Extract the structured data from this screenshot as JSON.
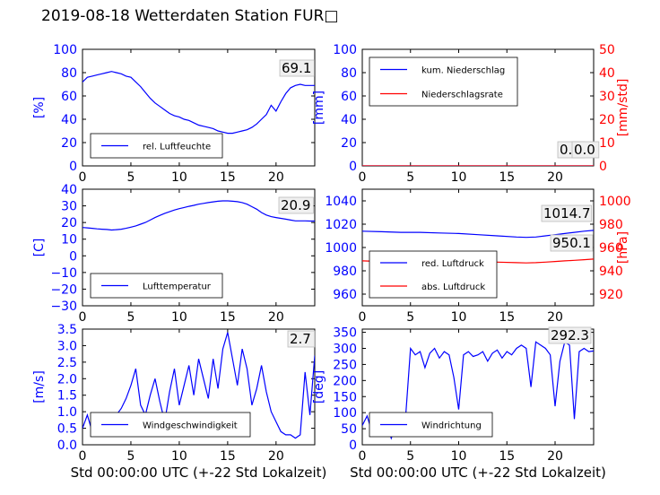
{
  "title": "2019-08-18 Wetterdaten Station FUR□",
  "colors": {
    "primary": "#0000ff",
    "secondary": "#ff0000",
    "faded": "#8080ff"
  },
  "chart_data": [
    {
      "id": "humidity",
      "type": "line",
      "xlim": [
        0,
        24
      ],
      "xticks": [
        "0",
        "5",
        "10",
        "15",
        "20"
      ],
      "ylabel": "[%]",
      "ylim": [
        0,
        100
      ],
      "yticks": [
        "0",
        "20",
        "40",
        "60",
        "80",
        "100"
      ],
      "latest_value": "69.1",
      "legend": {
        "placement": "lower-left",
        "entries": [
          "rel. Luftfeuchte"
        ]
      },
      "series": [
        {
          "name": "rel. Luftfeuchte",
          "color": "#0000ff",
          "x": [
            0,
            0.5,
            1,
            1.5,
            2,
            2.5,
            3,
            3.5,
            4,
            4.5,
            5,
            5.5,
            6,
            6.5,
            7,
            7.5,
            8,
            8.5,
            9,
            9.5,
            10,
            10.5,
            11,
            11.5,
            12,
            12.5,
            13,
            13.5,
            14,
            14.5,
            15,
            15.5,
            16,
            16.5,
            17,
            17.5,
            18,
            18.5,
            19,
            19.5,
            20,
            20.5,
            21,
            21.5,
            22,
            22.5,
            23,
            23.5,
            24
          ],
          "y": [
            72,
            76,
            77,
            78,
            79,
            80,
            81,
            80,
            79,
            77,
            76,
            72,
            68,
            63,
            58,
            54,
            51,
            48,
            45,
            43,
            42,
            40,
            39,
            37,
            35,
            34,
            33,
            32,
            30,
            29,
            28,
            28,
            29,
            30,
            31,
            33,
            36,
            40,
            44,
            52,
            47,
            55,
            62,
            67,
            69,
            70,
            69,
            69,
            69
          ]
        }
      ]
    },
    {
      "id": "precipitation",
      "type": "line",
      "xlim": [
        0,
        24
      ],
      "xticks": [
        "0",
        "5",
        "10",
        "15",
        "20"
      ],
      "ylabel": "[mm]",
      "ylim": [
        0,
        100
      ],
      "yticks": [
        "0",
        "20",
        "40",
        "60",
        "80",
        "100"
      ],
      "y2label": "[mm/std]",
      "y2lim": [
        0,
        50
      ],
      "y2ticks": [
        "0",
        "10",
        "20",
        "30",
        "40",
        "50"
      ],
      "latest_values": [
        "0.0",
        "0.0"
      ],
      "legend": {
        "placement": "top-left",
        "entries": [
          "kum. Niederschlag",
          "Niederschlagsrate"
        ]
      },
      "series": [
        {
          "name": "kum. Niederschlag",
          "color": "#0000ff",
          "axis": "left",
          "x": [
            0,
            24
          ],
          "y": [
            0,
            0
          ]
        },
        {
          "name": "Niederschlagsrate",
          "color": "#ff0000",
          "axis": "right",
          "x": [
            0,
            24
          ],
          "y": [
            0,
            0
          ]
        }
      ]
    },
    {
      "id": "temperature",
      "type": "line",
      "xlim": [
        0,
        24
      ],
      "xticks": [
        "0",
        "5",
        "10",
        "15",
        "20"
      ],
      "ylabel": "[C]",
      "ylim": [
        -30,
        40
      ],
      "yticks": [
        "−30",
        "−20",
        "−10",
        "0",
        "10",
        "20",
        "30",
        "40"
      ],
      "latest_value": "20.9",
      "legend": {
        "placement": "lower-left",
        "entries": [
          "Lufttemperatur"
        ]
      },
      "series": [
        {
          "name": "Lufttemperatur",
          "color": "#0000ff",
          "x": [
            0,
            0.5,
            1,
            1.5,
            2,
            2.5,
            3,
            3.5,
            4,
            4.5,
            5,
            5.5,
            6,
            6.5,
            7,
            7.5,
            8,
            8.5,
            9,
            9.5,
            10,
            10.5,
            11,
            11.5,
            12,
            12.5,
            13,
            13.5,
            14,
            14.5,
            15,
            15.5,
            16,
            16.5,
            17,
            17.5,
            18,
            18.5,
            19,
            19.5,
            20,
            20.5,
            21,
            21.5,
            22,
            22.5,
            23,
            23.5,
            24
          ],
          "y": [
            17,
            16.8,
            16.5,
            16.2,
            16,
            15.8,
            15.5,
            15.7,
            16,
            16.5,
            17.2,
            18,
            19,
            20,
            21.5,
            23,
            24.3,
            25.5,
            26.5,
            27.5,
            28.3,
            29,
            29.7,
            30.3,
            31,
            31.5,
            32,
            32.4,
            32.8,
            33,
            33,
            32.8,
            32.5,
            32,
            31,
            29.5,
            28,
            26,
            24.5,
            23.5,
            23,
            22.5,
            22,
            21.5,
            21,
            21,
            21,
            20.9,
            20.9
          ]
        }
      ]
    },
    {
      "id": "pressure",
      "type": "line",
      "xlim": [
        0,
        24
      ],
      "xticks": [
        "0",
        "5",
        "10",
        "15",
        "20"
      ],
      "ylim": [
        950,
        1050
      ],
      "yticks": [
        "960",
        "980",
        "1000",
        "1020",
        "1040"
      ],
      "y2label": "[hPa]",
      "y2lim": [
        910,
        1010
      ],
      "y2ticks": [
        "920",
        "940",
        "960",
        "980",
        "1000"
      ],
      "latest_values": [
        "1014.7",
        "950.1"
      ],
      "legend": {
        "placement": "lower-left",
        "entries": [
          "red. Luftdruck",
          "abs. Luftdruck"
        ]
      },
      "series": [
        {
          "name": "red. Luftdruck",
          "color": "#0000ff",
          "axis": "left",
          "x": [
            0,
            2,
            4,
            6,
            8,
            10,
            12,
            14,
            16,
            17,
            18,
            19,
            20,
            21,
            22,
            23,
            24
          ],
          "y": [
            1014,
            1013.5,
            1013,
            1013,
            1012.5,
            1012,
            1011,
            1010,
            1009,
            1008.7,
            1009,
            1010,
            1011,
            1012,
            1013,
            1014,
            1014.7
          ]
        },
        {
          "name": "abs. Luftdruck",
          "color": "#ff0000",
          "axis": "right",
          "x": [
            0,
            2,
            4,
            6,
            8,
            10,
            12,
            14,
            16,
            17,
            18,
            19,
            20,
            21,
            22,
            23,
            24
          ],
          "y": [
            948.5,
            948,
            948,
            948.3,
            948.5,
            948.3,
            948,
            947.5,
            947,
            946.8,
            947,
            947.5,
            948,
            948.5,
            949,
            949.5,
            950.1
          ]
        }
      ]
    },
    {
      "id": "wind_speed",
      "type": "line",
      "xlim": [
        0,
        24
      ],
      "xticks": [
        "0",
        "5",
        "10",
        "15",
        "20"
      ],
      "ylabel": "[m/s]",
      "ylim": [
        0,
        3.5
      ],
      "yticks": [
        "0.0",
        "0.5",
        "1.0",
        "1.5",
        "2.0",
        "2.5",
        "3.0",
        "3.5"
      ],
      "latest_value": "2.7",
      "legend": {
        "placement": "lower-left",
        "entries": [
          "Windgeschwindigkeit"
        ]
      },
      "series": [
        {
          "name": "Windgeschwindigkeit",
          "color": "#0000ff",
          "x": [
            0,
            0.5,
            1,
            1.5,
            2,
            2.5,
            3,
            3.5,
            4,
            4.5,
            5,
            5.5,
            6,
            6.5,
            7,
            7.5,
            8,
            8.5,
            9,
            9.5,
            10,
            10.5,
            11,
            11.5,
            12,
            12.5,
            13,
            13.5,
            14,
            14.5,
            15,
            15.5,
            16,
            16.5,
            17,
            17.5,
            18,
            18.5,
            19,
            19.5,
            20,
            20.5,
            21,
            21.5,
            22,
            22.5,
            23,
            23.5,
            24
          ],
          "y": [
            0.5,
            0.9,
            0.4,
            0.8,
            0.6,
            0.3,
            0.5,
            0.9,
            1.1,
            1.4,
            1.8,
            2.3,
            1.2,
            0.9,
            1.5,
            2.0,
            1.3,
            0.7,
            1.6,
            2.3,
            1.2,
            1.8,
            2.4,
            1.5,
            2.6,
            2.0,
            1.4,
            2.6,
            1.7,
            2.9,
            3.4,
            2.6,
            1.8,
            2.9,
            2.3,
            1.2,
            1.7,
            2.4,
            1.6,
            1.0,
            0.7,
            0.4,
            0.3,
            0.3,
            0.2,
            0.3,
            2.2,
            0.9,
            2.7
          ]
        }
      ]
    },
    {
      "id": "wind_direction",
      "type": "line",
      "xlim": [
        0,
        24
      ],
      "xticks": [
        "0",
        "5",
        "10",
        "15",
        "20"
      ],
      "ylabel": "[deg]",
      "ylim": [
        0,
        360
      ],
      "yticks": [
        "0",
        "50",
        "100",
        "150",
        "200",
        "250",
        "300",
        "350"
      ],
      "latest_value": "292.3",
      "legend": {
        "placement": "lower-left",
        "entries": [
          "Windrichtung"
        ]
      },
      "series": [
        {
          "name": "Windrichtung",
          "color": "#0000ff",
          "x": [
            0,
            0.5,
            1,
            1.5,
            2,
            2.5,
            3,
            3.5,
            4,
            4.5,
            5,
            5.5,
            6,
            6.5,
            7,
            7.5,
            8,
            8.5,
            9,
            9.5,
            10,
            10.5,
            11,
            11.5,
            12,
            12.5,
            13,
            13.5,
            14,
            14.5,
            15,
            15.5,
            16,
            16.5,
            17,
            17.5,
            18,
            18.5,
            19,
            19.5,
            20,
            20.5,
            21,
            21.5,
            22,
            22.5,
            23,
            23.5,
            24
          ],
          "y": [
            60,
            90,
            40,
            80,
            30,
            70,
            20,
            60,
            40,
            90,
            300,
            280,
            290,
            240,
            285,
            300,
            270,
            290,
            280,
            210,
            110,
            280,
            290,
            275,
            280,
            290,
            260,
            285,
            295,
            270,
            290,
            280,
            300,
            310,
            300,
            180,
            320,
            310,
            300,
            280,
            120,
            260,
            320,
            310,
            80,
            290,
            300,
            290,
            292
          ]
        }
      ]
    }
  ],
  "xlabel": "Std 00:00:00 UTC (+-22 Std Lokalzeit)"
}
